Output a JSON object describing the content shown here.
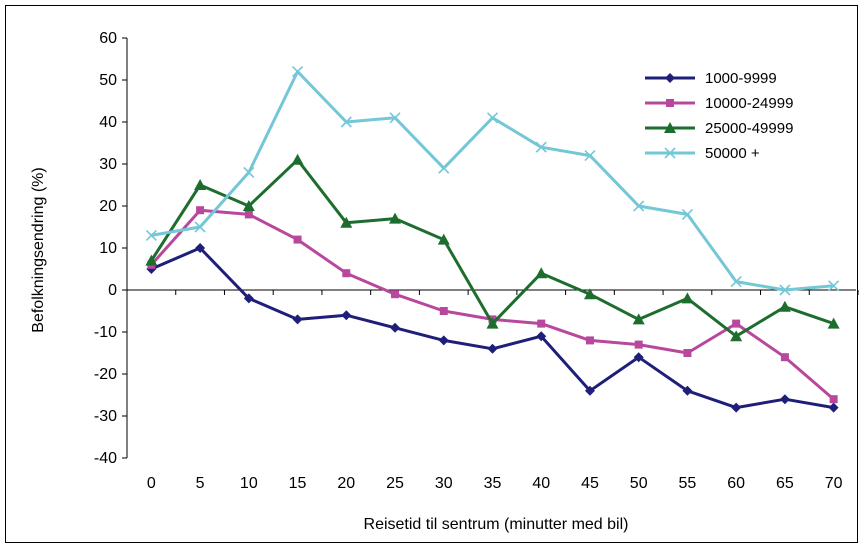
{
  "chart_data": {
    "type": "line",
    "title": "",
    "xlabel": "Reisetid til sentrum (minutter med bil)",
    "ylabel": "Befolkningsendring (%)",
    "x": [
      0,
      5,
      10,
      15,
      20,
      25,
      30,
      35,
      40,
      45,
      50,
      55,
      60,
      65,
      70
    ],
    "ylim": [
      -40,
      60
    ],
    "yticks": [
      -40,
      -30,
      -20,
      -10,
      0,
      10,
      20,
      30,
      40,
      50,
      60
    ],
    "grid": false,
    "legend_position": "top-right",
    "series": [
      {
        "name": "1000-9999",
        "color": "#1f1f7a",
        "marker": "diamond",
        "values": [
          5,
          10,
          -2,
          -7,
          -6,
          -9,
          -12,
          -14,
          -11,
          -24,
          -16,
          -24,
          -28,
          -26,
          -28
        ]
      },
      {
        "name": "10000-24999",
        "color": "#b8489e",
        "marker": "square",
        "values": [
          6,
          19,
          18,
          12,
          4,
          -1,
          -5,
          -7,
          -8,
          -12,
          -13,
          -15,
          -8,
          -16,
          -26
        ]
      },
      {
        "name": "25000-49999",
        "color": "#1d6e2e",
        "marker": "triangle",
        "values": [
          7,
          25,
          20,
          31,
          16,
          17,
          12,
          -8,
          4,
          -1,
          -7,
          -2,
          -11,
          -4,
          -8
        ]
      },
      {
        "name": "50000 +",
        "color": "#73c7d6",
        "marker": "x",
        "values": [
          13,
          15,
          28,
          52,
          40,
          41,
          29,
          41,
          34,
          32,
          20,
          18,
          2,
          0,
          1
        ]
      }
    ]
  }
}
